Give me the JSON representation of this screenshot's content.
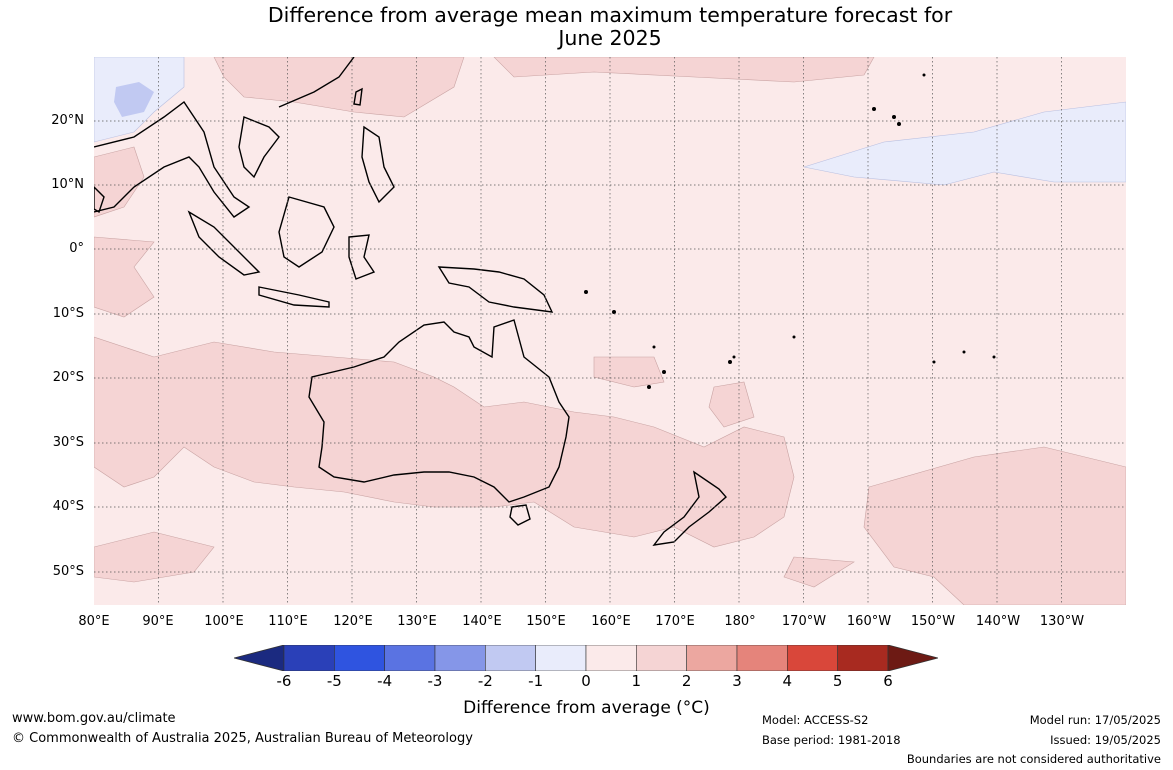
{
  "title": {
    "line1": "Difference from average mean maximum temperature forecast for",
    "line2": "June 2025"
  },
  "map": {
    "lat_labels": [
      "20°N",
      "10°N",
      "0°",
      "10°S",
      "20°S",
      "30°S",
      "40°S",
      "50°S"
    ],
    "lon_labels": [
      "80°E",
      "90°E",
      "100°E",
      "110°E",
      "120°E",
      "130°E",
      "140°E",
      "150°E",
      "160°E",
      "170°E",
      "180°",
      "170°W",
      "160°W",
      "150°W",
      "140°W",
      "130°W"
    ]
  },
  "colorbar": {
    "ticks": [
      "-6",
      "-5",
      "-4",
      "-3",
      "-2",
      "-1",
      "0",
      "1",
      "2",
      "3",
      "4",
      "5",
      "6"
    ],
    "colors": [
      "#1b2a80",
      "#2a40b8",
      "#2f54e0",
      "#5a73e2",
      "#8596e8",
      "#c1c9f2",
      "#e9ecfb",
      "#fbeaea",
      "#f5d4d4",
      "#eca7a0",
      "#e5847b",
      "#d9473a",
      "#a82a20",
      "#6d1a14"
    ],
    "label": "Difference from average (°C)"
  },
  "footer": {
    "url": "www.bom.gov.au/climate",
    "copyright": "© Commonwealth of Australia 2025, Australian Bureau of Meteorology",
    "model": "Model: ACCESS-S2",
    "base_period": "Base period: 1981-2018",
    "model_run": "Model run: 17/05/2025",
    "issued": "Issued: 19/05/2025",
    "disclaimer": "Boundaries are not considered authoritative"
  }
}
